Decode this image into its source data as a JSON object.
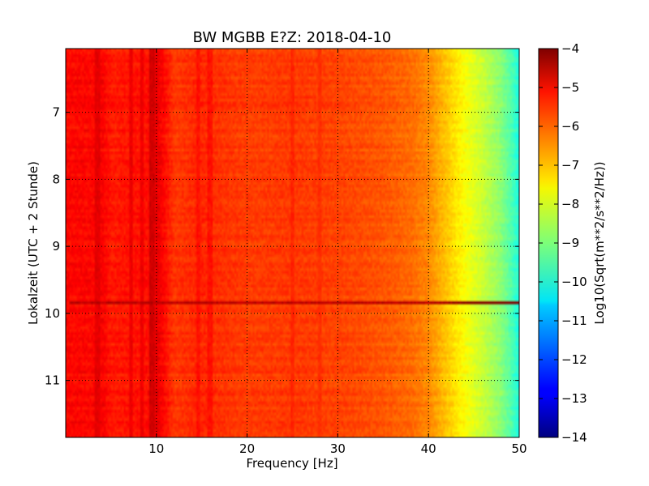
{
  "chart_data": {
    "type": "heatmap",
    "title": "BW MGBB E?Z: 2018-04-10",
    "xlabel": "Frequency [Hz]",
    "ylabel": "Lokalzeit (UTC + 2 Stunde)",
    "xlim": [
      0,
      50
    ],
    "ylim": [
      11.85,
      6.05
    ],
    "x_ticks": [
      10,
      20,
      30,
      40,
      50
    ],
    "x_tick_labels": [
      "10",
      "20",
      "30",
      "40",
      "50"
    ],
    "y_ticks": [
      7,
      8,
      9,
      10,
      11
    ],
    "y_tick_labels": [
      "7",
      "8",
      "9",
      "10",
      "11"
    ],
    "grid": true,
    "colormap": "jet",
    "colorbar": {
      "label": "Log10(Sqrt(m**2/s**2/Hz))",
      "min": -14,
      "max": -4,
      "ticks": [
        -4,
        -5,
        -6,
        -7,
        -8,
        -9,
        -10,
        -11,
        -12,
        -13,
        -14
      ],
      "tick_labels": [
        "−4",
        "−5",
        "−6",
        "−7",
        "−8",
        "−9",
        "−10",
        "−11",
        "−12",
        "−13",
        "−14"
      ]
    },
    "spectrum_profile": {
      "frequency_hz": [
        0,
        3,
        4,
        5,
        9,
        10,
        12,
        15,
        16,
        20,
        25,
        30,
        35,
        38,
        40,
        42,
        44,
        46,
        48,
        49,
        50
      ],
      "log_amplitude": [
        -5.3,
        -5.3,
        -5.2,
        -5.5,
        -5.4,
        -5.0,
        -5.8,
        -5.6,
        -5.7,
        -5.85,
        -5.8,
        -5.9,
        -6.1,
        -6.3,
        -6.6,
        -7.2,
        -7.8,
        -8.3,
        -8.9,
        -9.4,
        -10.0
      ]
    },
    "vertical_lines": [
      {
        "frequency_hz": 3.5,
        "log_amplitude": -5.0
      },
      {
        "frequency_hz": 7.2,
        "log_amplitude": -5.1
      },
      {
        "frequency_hz": 8.4,
        "log_amplitude": -5.1
      },
      {
        "frequency_hz": 9.5,
        "log_amplitude": -4.8
      },
      {
        "frequency_hz": 14.6,
        "log_amplitude": -5.4
      },
      {
        "frequency_hz": 15.9,
        "log_amplitude": -5.4
      },
      {
        "frequency_hz": 25.0,
        "log_amplitude": -5.6
      },
      {
        "frequency_hz": 28.0,
        "log_amplitude": -5.7
      }
    ],
    "horizontal_events": [
      {
        "time_hours": 9.83,
        "log_amplitude": -4.6,
        "band_hz": [
          0.5,
          50
        ]
      }
    ]
  }
}
